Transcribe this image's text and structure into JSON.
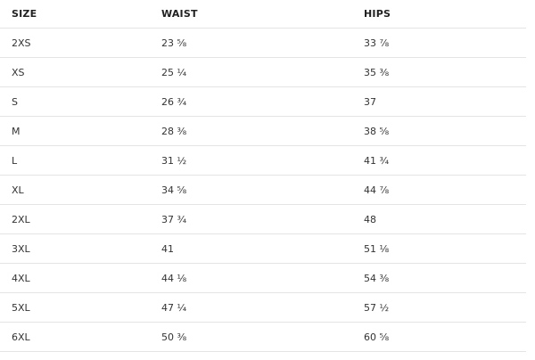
{
  "table": {
    "header": [
      "SIZE",
      "WAIST",
      "HIPS"
    ],
    "rows": [
      [
        "2XS",
        "23 ⅝",
        "33 ⅞"
      ],
      [
        "XS",
        "25 ¼",
        "35 ⅜"
      ],
      [
        "S",
        "26 ¾",
        "37"
      ],
      [
        "M",
        "28 ⅜",
        "38 ⅝"
      ],
      [
        "L",
        "31 ½",
        "41 ¾"
      ],
      [
        "XL",
        "34 ⅝",
        "44 ⅞"
      ],
      [
        "2XL",
        "37 ¾",
        "48"
      ],
      [
        "3XL",
        "41",
        "51 ⅛"
      ],
      [
        "4XL",
        "44 ⅛",
        "54 ⅜"
      ],
      [
        "5XL",
        "47 ¼",
        "57 ½"
      ],
      [
        "6XL",
        "50 ⅜",
        "60 ⅝"
      ]
    ]
  }
}
